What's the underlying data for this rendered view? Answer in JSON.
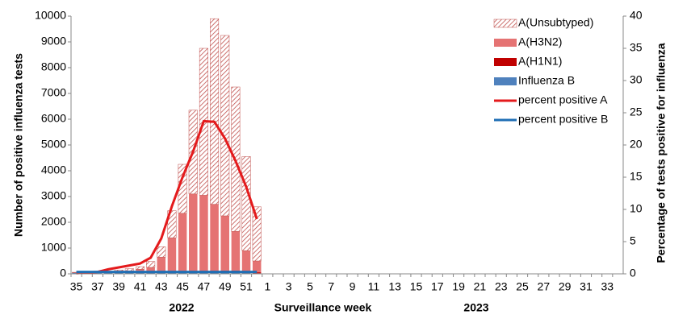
{
  "chart_data": {
    "type": "bar",
    "stacked": true,
    "y_label": "Number of positive influenza tests",
    "y2_label": "Percentage of tests positive for influenza",
    "x_label": "Surveillance  week",
    "annotations": [
      "2022",
      "2023"
    ],
    "categories": [
      "35",
      null,
      "37",
      null,
      "39",
      null,
      "41",
      null,
      "43",
      null,
      "45",
      null,
      "47",
      null,
      "49",
      null,
      "51",
      null,
      "1",
      null,
      "3",
      null,
      "5",
      null,
      "7",
      null,
      "9",
      null,
      "11",
      null,
      "13",
      null,
      "15",
      null,
      "17",
      null,
      "19",
      null,
      "21",
      null,
      "23",
      null,
      "25",
      null,
      "27",
      null,
      "29",
      null,
      "31",
      null,
      "33",
      null
    ],
    "ylim": [
      0,
      10000
    ],
    "yticks": [
      0,
      1000,
      2000,
      3000,
      4000,
      5000,
      6000,
      7000,
      8000,
      9000,
      10000
    ],
    "y2lim": [
      0,
      40
    ],
    "y2ticks": [
      0,
      5,
      10,
      15,
      20,
      25,
      30,
      35,
      40
    ],
    "legend": "top-right",
    "grid": false,
    "series": [
      {
        "name": "A(Unsubtyped)",
        "type": "bar",
        "color": "#c0504d",
        "pattern": "hatch",
        "values": [
          10,
          10,
          10,
          20,
          60,
          80,
          100,
          230,
          400,
          1050,
          1900,
          3250,
          5700,
          7200,
          7000,
          5600,
          3650,
          2100,
          null,
          null,
          null,
          null,
          null,
          null,
          null,
          null,
          null,
          null,
          null,
          null,
          null,
          null,
          null,
          null,
          null,
          null,
          null,
          null,
          null,
          null,
          null,
          null,
          null,
          null,
          null,
          null,
          null,
          null,
          null,
          null,
          null,
          null
        ]
      },
      {
        "name": "A(H3N2)",
        "type": "bar",
        "color": "#e57373",
        "values": [
          5,
          5,
          5,
          15,
          40,
          70,
          130,
          200,
          600,
          1340,
          2290,
          3020,
          2930,
          2580,
          2120,
          1520,
          790,
          440,
          null,
          null,
          null,
          null,
          null,
          null,
          null,
          null,
          null,
          null,
          null,
          null,
          null,
          null,
          null,
          null,
          null,
          null,
          null,
          null,
          null,
          null,
          null,
          null,
          null,
          null,
          null,
          null,
          null,
          null,
          null,
          null,
          null,
          null
        ]
      },
      {
        "name": "A(H1N1)",
        "type": "bar",
        "color": "#c00000",
        "values": [
          5,
          5,
          5,
          5,
          10,
          10,
          10,
          10,
          10,
          20,
          20,
          40,
          80,
          80,
          90,
          90,
          80,
          40,
          null,
          null,
          null,
          null,
          null,
          null,
          null,
          null,
          null,
          null,
          null,
          null,
          null,
          null,
          null,
          null,
          null,
          null,
          null,
          null,
          null,
          null,
          null,
          null,
          null,
          null,
          null,
          null,
          null,
          null,
          null,
          null,
          null,
          null
        ]
      },
      {
        "name": "Influenza B",
        "type": "bar",
        "color": "#4f81bd",
        "values": [
          40,
          40,
          40,
          40,
          40,
          40,
          40,
          40,
          40,
          40,
          40,
          40,
          40,
          40,
          40,
          40,
          30,
          20,
          null,
          null,
          null,
          null,
          null,
          null,
          null,
          null,
          null,
          null,
          null,
          null,
          null,
          null,
          null,
          null,
          null,
          null,
          null,
          null,
          null,
          null,
          null,
          null,
          null,
          null,
          null,
          null,
          null,
          null,
          null,
          null,
          null,
          null
        ]
      },
      {
        "name": "percent positive A",
        "type": "line",
        "axis": "y2",
        "color": "#e41a1c",
        "values": [
          0.1,
          0.2,
          0.3,
          0.7,
          1.0,
          1.3,
          1.6,
          2.5,
          5.5,
          10.5,
          15,
          19,
          23.7,
          23.6,
          21,
          17.5,
          13.5,
          8.5,
          null,
          null,
          null,
          null,
          null,
          null,
          null,
          null,
          null,
          null,
          null,
          null,
          null,
          null,
          null,
          null,
          null,
          null,
          null,
          null,
          null,
          null,
          null,
          null,
          null,
          null,
          null,
          null,
          null,
          null,
          null,
          null,
          null,
          null
        ]
      },
      {
        "name": "percent positive B",
        "type": "line",
        "axis": "y2",
        "color": "#1f6fb5",
        "values": [
          0.3,
          0.3,
          0.3,
          0.3,
          0.3,
          0.3,
          0.3,
          0.3,
          0.3,
          0.3,
          0.3,
          0.3,
          0.3,
          0.3,
          0.3,
          0.3,
          0.3,
          0.3,
          null,
          null,
          null,
          null,
          null,
          null,
          null,
          null,
          null,
          null,
          null,
          null,
          null,
          null,
          null,
          null,
          null,
          null,
          null,
          null,
          null,
          null,
          null,
          null,
          null,
          null,
          null,
          null,
          null,
          null,
          null,
          null,
          null,
          null
        ]
      }
    ]
  }
}
